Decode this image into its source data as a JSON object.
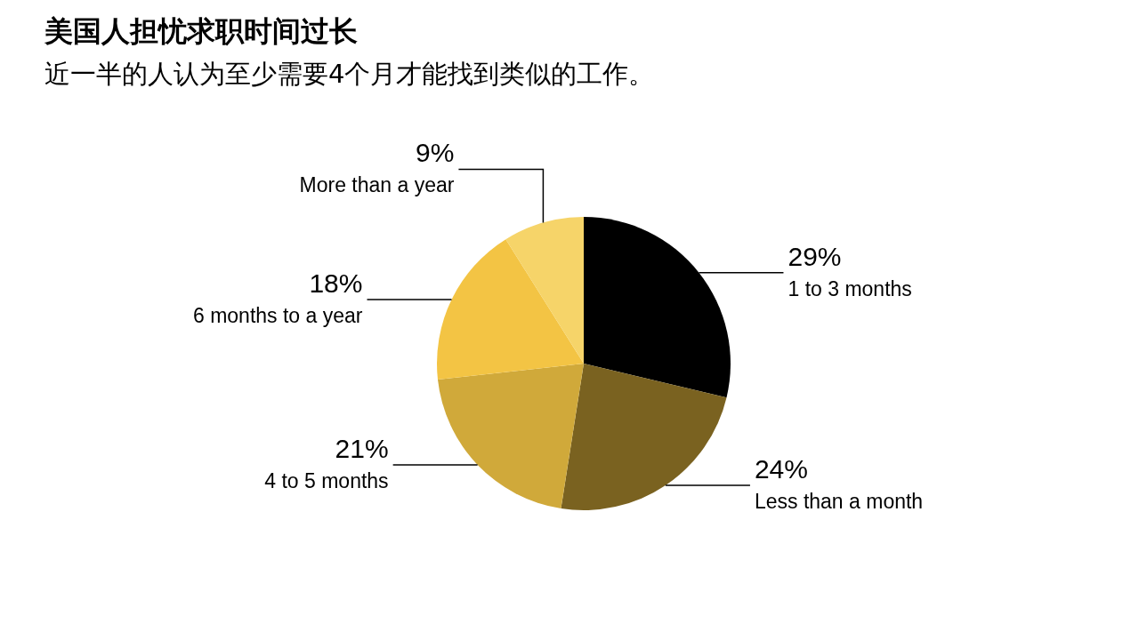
{
  "chart_data": {
    "type": "pie",
    "title": "美国人担忧求职时间过长",
    "subtitle": "近一半的人认为至少需要4个月才能找到类似的工作。",
    "categories": [
      "1 to 3 months",
      "Less than a month",
      "4 to 5 months",
      "6 months to a year",
      "More than a year"
    ],
    "values": [
      29,
      24,
      21,
      18,
      9
    ],
    "colors": [
      "#000000",
      "#7a6220",
      "#d0a93a",
      "#f3c444",
      "#f6d469"
    ],
    "value_labels": [
      "29%",
      "24%",
      "21%",
      "18%",
      "9%"
    ]
  }
}
